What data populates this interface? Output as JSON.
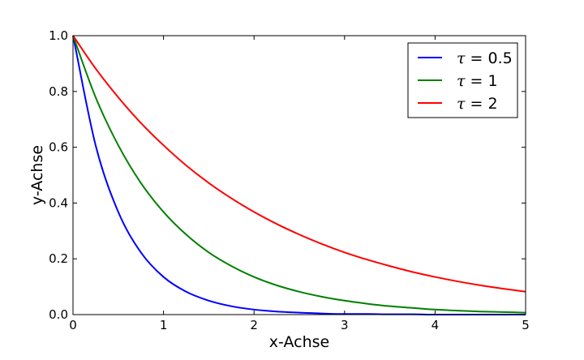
{
  "chart_data": {
    "type": "line",
    "title": "",
    "xlabel": "x-Achse",
    "ylabel": "y-Achse",
    "xlim": [
      0,
      5
    ],
    "ylim": [
      0,
      1.0
    ],
    "xticks": [
      "0",
      "1",
      "2",
      "3",
      "4",
      "5"
    ],
    "yticks": [
      "0.0",
      "0.2",
      "0.4",
      "0.6",
      "0.8",
      "1.0"
    ],
    "grid": false,
    "legend_position": "top-right",
    "x": [
      0,
      0.25,
      0.5,
      0.75,
      1,
      1.25,
      1.5,
      1.75,
      2,
      2.25,
      2.5,
      2.75,
      3,
      3.25,
      3.5,
      3.75,
      4,
      4.25,
      4.5,
      4.75,
      5
    ],
    "series": [
      {
        "name": "τ = 0.5",
        "legend_symbol": "τ",
        "legend_value": "= 0.5",
        "color": "#0000ff",
        "values": [
          1.0,
          0.607,
          0.368,
          0.223,
          0.135,
          0.082,
          0.05,
          0.03,
          0.018,
          0.011,
          0.007,
          0.004,
          0.002,
          0.002,
          0.001,
          0.001,
          0.0,
          0.0,
          0.0,
          0.0,
          0.0
        ]
      },
      {
        "name": "τ = 1",
        "legend_symbol": "τ",
        "legend_value": "= 1",
        "color": "#008000",
        "values": [
          1.0,
          0.779,
          0.607,
          0.472,
          0.368,
          0.287,
          0.223,
          0.174,
          0.135,
          0.105,
          0.082,
          0.064,
          0.05,
          0.039,
          0.03,
          0.024,
          0.018,
          0.014,
          0.011,
          0.009,
          0.007
        ]
      },
      {
        "name": "τ = 2",
        "legend_symbol": "τ",
        "legend_value": "= 2",
        "color": "#ff0000",
        "values": [
          1.0,
          0.882,
          0.779,
          0.687,
          0.607,
          0.535,
          0.472,
          0.417,
          0.368,
          0.325,
          0.287,
          0.253,
          0.223,
          0.197,
          0.174,
          0.153,
          0.135,
          0.119,
          0.105,
          0.093,
          0.082
        ]
      }
    ]
  }
}
